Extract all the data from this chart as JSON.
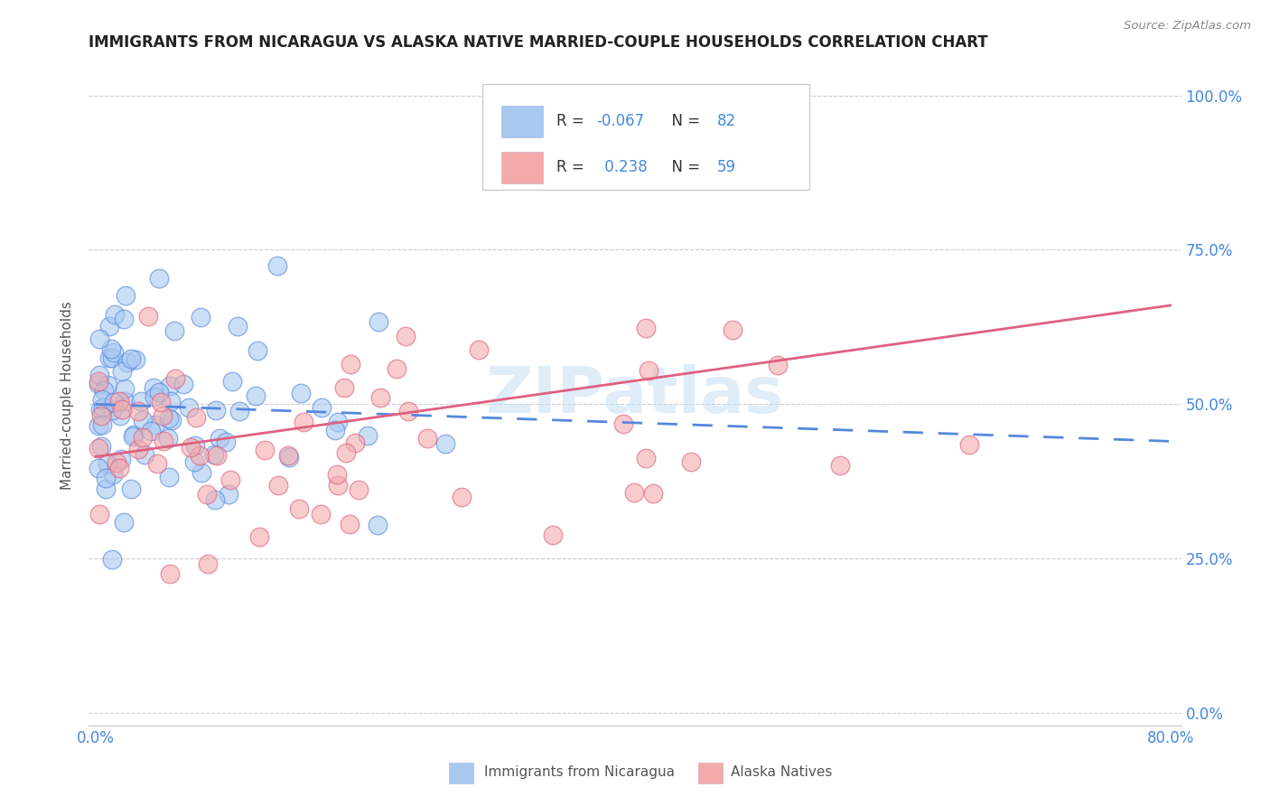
{
  "title": "IMMIGRANTS FROM NICARAGUA VS ALASKA NATIVE MARRIED-COUPLE HOUSEHOLDS CORRELATION CHART",
  "source": "Source: ZipAtlas.com",
  "ylabel": "Married-couple Households",
  "ytick_labels": [
    "0.0%",
    "25.0%",
    "50.0%",
    "75.0%",
    "100.0%"
  ],
  "ytick_values": [
    0.0,
    0.25,
    0.5,
    0.75,
    1.0
  ],
  "xlim_max": 0.08,
  "ylim": [
    0.0,
    1.05
  ],
  "watermark": "ZIPatlas",
  "legend_blue_R": "-0.067",
  "legend_blue_N": "82",
  "legend_pink_R": "0.238",
  "legend_pink_N": "59",
  "blue_color": "#A8C8F0",
  "pink_color": "#F4AAAA",
  "trendline_blue_color": "#5588DD",
  "trendline_pink_color": "#E06080",
  "grid_color": "#CCCCCC",
  "title_color": "#222222",
  "axis_label_color": "#4488DD",
  "label_color": "#555555",
  "legend_text_dark": "#333333",
  "legend_label_blue": "Immigrants from Nicaragua",
  "legend_label_pink": "Alaska Natives"
}
